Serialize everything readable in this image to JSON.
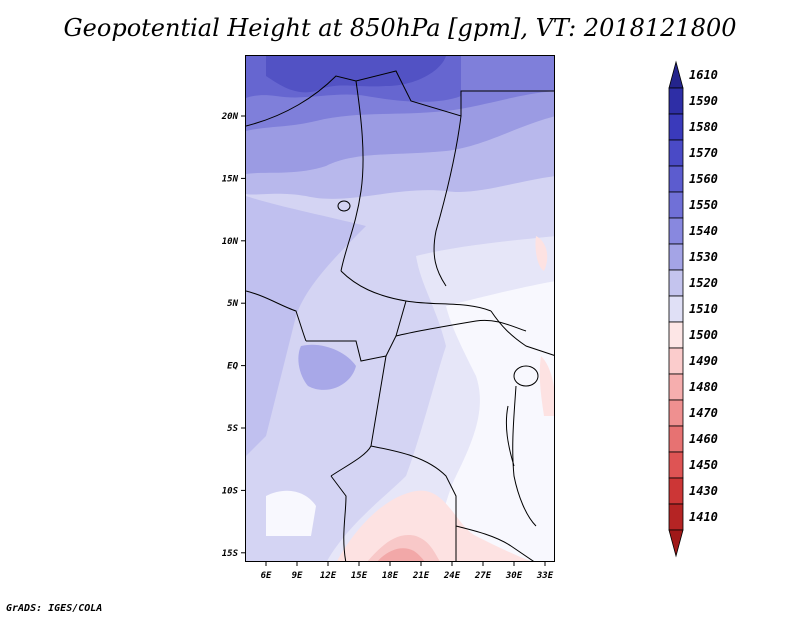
{
  "title": "Geopotential Height at 850hPa [gpm], VT: 2018121800",
  "credit": "GrADS: IGES/COLA",
  "map": {
    "lon_labels": [
      "6E",
      "9E",
      "12E",
      "15E",
      "18E",
      "21E",
      "24E",
      "27E",
      "30E",
      "33E"
    ],
    "lat_labels": [
      "20N",
      "15N",
      "10N",
      "5N",
      "EQ",
      "5S",
      "10S",
      "15S"
    ]
  },
  "colorbar": {
    "labels": [
      "1610",
      "1590",
      "1580",
      "1570",
      "1560",
      "1550",
      "1540",
      "1530",
      "1520",
      "1510",
      "1500",
      "1490",
      "1480",
      "1470",
      "1460",
      "1450",
      "1430",
      "1410"
    ],
    "colors": [
      "#24248c",
      "#2e2ea6",
      "#3a3abb",
      "#4a4ac6",
      "#5c5ccf",
      "#7070d7",
      "#8888df",
      "#a4a4e6",
      "#c4c4ee",
      "#e0e0f6",
      "#fde6e6",
      "#fbcccc",
      "#f6aeae",
      "#ef9090",
      "#e77272",
      "#de5454",
      "#cc3636",
      "#b52424",
      "#a01818"
    ]
  }
}
